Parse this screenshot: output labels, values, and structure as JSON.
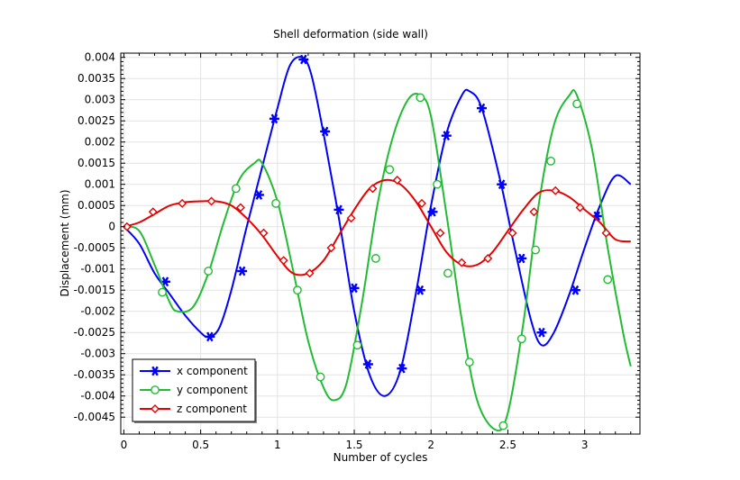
{
  "chart_data": {
    "type": "line",
    "title": "Shell deformation (side wall)",
    "xlabel": "Number of cycles",
    "ylabel": "Displacement (mm)",
    "xlim": [
      -0.02,
      3.36
    ],
    "ylim": [
      -0.0049,
      0.0041
    ],
    "x_ticks": [
      0,
      0.5,
      1,
      1.5,
      2,
      2.5,
      3
    ],
    "x_tick_labels": [
      "0",
      "0.5",
      "1",
      "1.5",
      "2",
      "2.5",
      "3"
    ],
    "y_ticks": [
      0.004,
      0.0035,
      0.003,
      0.0025,
      0.002,
      0.0015,
      0.001,
      0.0005,
      0,
      -0.0005,
      -0.001,
      -0.0015,
      -0.002,
      -0.0025,
      -0.003,
      -0.0035,
      -0.004,
      -0.0045
    ],
    "y_tick_labels": [
      "0.004",
      "0.0035",
      "0.003",
      "0.0025",
      "0.002",
      "0.0015",
      "0.001",
      "0.0005",
      "0",
      "-0.0005",
      "-0.001",
      "-0.0015",
      "-0.002",
      "-0.0025",
      "-0.003",
      "-0.0035",
      "-0.004",
      "-0.0045"
    ],
    "grid": true,
    "legend_position": "bottom-left",
    "series": [
      {
        "name": "x component",
        "color": "#0000ff",
        "marker": "asterisk",
        "x": [
          0,
          0.1,
          0.2,
          0.3,
          0.4,
          0.5,
          0.55,
          0.62,
          0.7,
          0.8,
          0.9,
          1.0,
          1.08,
          1.16,
          1.22,
          1.3,
          1.4,
          1.5,
          1.6,
          1.7,
          1.8,
          1.9,
          2.0,
          2.1,
          2.2,
          2.25,
          2.33,
          2.45,
          2.55,
          2.65,
          2.72,
          2.8,
          2.9,
          3.0,
          3.1,
          3.2,
          3.3
        ],
        "values": [
          0.0,
          -0.0004,
          -0.0011,
          -0.0016,
          -0.0021,
          -0.0025,
          -0.0026,
          -0.0024,
          -0.0015,
          0.0,
          0.0014,
          0.0028,
          0.0038,
          0.004,
          0.0036,
          0.0022,
          0.0002,
          -0.002,
          -0.0035,
          -0.004,
          -0.0034,
          -0.0016,
          0.0005,
          0.0022,
          0.0031,
          0.0032,
          0.0028,
          0.0011,
          -0.0006,
          -0.0022,
          -0.0028,
          -0.0025,
          -0.0016,
          -0.0005,
          0.0005,
          0.0012,
          0.001
        ],
        "marker_x": [
          0.27,
          0.56,
          0.77,
          0.88,
          0.98,
          1.17,
          1.31,
          1.4,
          1.5,
          1.59,
          1.81,
          1.93,
          2.01,
          2.1,
          2.33,
          2.46,
          2.59,
          2.72,
          2.94,
          3.08
        ],
        "marker_values": [
          -0.0013,
          -0.0026,
          -0.00105,
          0.00075,
          0.00255,
          0.00395,
          0.00225,
          0.0004,
          -0.00145,
          -0.00325,
          -0.00335,
          -0.0015,
          0.00035,
          0.00215,
          0.0028,
          0.001,
          -0.00075,
          -0.0025,
          -0.0015,
          0.00025
        ]
      },
      {
        "name": "y component",
        "color": "#22bb33",
        "marker": "circle",
        "x": [
          0,
          0.1,
          0.2,
          0.3,
          0.35,
          0.45,
          0.55,
          0.65,
          0.75,
          0.85,
          0.9,
          1.0,
          1.1,
          1.2,
          1.3,
          1.37,
          1.45,
          1.55,
          1.65,
          1.75,
          1.85,
          1.93,
          2.0,
          2.1,
          2.2,
          2.3,
          2.42,
          2.5,
          2.6,
          2.7,
          2.8,
          2.9,
          2.95,
          3.05,
          3.15,
          3.25,
          3.3
        ],
        "values": [
          0.0,
          -0.0001,
          -0.0009,
          -0.0018,
          -0.002,
          -0.0019,
          -0.0011,
          0.0001,
          0.0011,
          0.0015,
          0.0015,
          0.0006,
          -0.001,
          -0.0027,
          -0.0038,
          -0.0041,
          -0.0037,
          -0.0018,
          0.0005,
          0.0021,
          0.003,
          0.0031,
          0.0026,
          0.0003,
          -0.0022,
          -0.0041,
          -0.0048,
          -0.0044,
          -0.0023,
          0.0005,
          0.0024,
          0.0031,
          0.0031,
          0.0018,
          -0.0005,
          -0.0025,
          -0.0033
        ],
        "marker_x": [
          0.25,
          0.55,
          0.73,
          0.99,
          1.13,
          1.28,
          1.52,
          1.64,
          1.73,
          1.93,
          2.04,
          2.11,
          2.25,
          2.47,
          2.59,
          2.68,
          2.78,
          2.95,
          3.15
        ],
        "marker_values": [
          -0.00155,
          -0.00105,
          0.0009,
          0.00055,
          -0.0015,
          -0.00355,
          -0.0028,
          -0.00075,
          0.00135,
          0.00305,
          0.001,
          -0.0011,
          -0.0032,
          -0.0047,
          -0.00265,
          -0.00055,
          0.00155,
          0.0029,
          -0.00125
        ]
      },
      {
        "name": "z component",
        "color": "#e60000",
        "marker": "diamond",
        "x": [
          0,
          0.1,
          0.2,
          0.3,
          0.4,
          0.5,
          0.6,
          0.7,
          0.8,
          0.9,
          1.0,
          1.1,
          1.2,
          1.3,
          1.4,
          1.5,
          1.6,
          1.7,
          1.8,
          1.9,
          2.0,
          2.1,
          2.2,
          2.3,
          2.4,
          2.5,
          2.6,
          2.7,
          2.8,
          2.9,
          3.0,
          3.1,
          3.2,
          3.3
        ],
        "values": [
          0.0,
          0.0001,
          0.0003,
          0.0005,
          0.00058,
          0.0006,
          0.0006,
          0.0005,
          0.0002,
          -0.0002,
          -0.0007,
          -0.0011,
          -0.0011,
          -0.0008,
          -0.0002,
          0.0004,
          0.0009,
          0.0011,
          0.001,
          0.0006,
          0.0,
          -0.0006,
          -0.0009,
          -0.0009,
          -0.0006,
          -0.0001,
          0.0004,
          0.0008,
          0.00085,
          0.0007,
          0.0004,
          0.0001,
          -0.0003,
          -0.00035
        ],
        "marker_x": [
          0.02,
          0.19,
          0.38,
          0.57,
          0.76,
          0.91,
          1.04,
          1.21,
          1.35,
          1.48,
          1.62,
          1.78,
          1.94,
          2.06,
          2.2,
          2.37,
          2.53,
          2.67,
          2.81,
          2.97,
          3.14
        ],
        "marker_values": [
          0.0,
          0.00035,
          0.00055,
          0.0006,
          0.00045,
          -0.00015,
          -0.0008,
          -0.0011,
          -0.0005,
          0.0002,
          0.0009,
          0.0011,
          0.00055,
          -0.00015,
          -0.00085,
          -0.00075,
          -0.00015,
          0.00035,
          0.00085,
          0.00045,
          -0.00015
        ]
      }
    ]
  }
}
